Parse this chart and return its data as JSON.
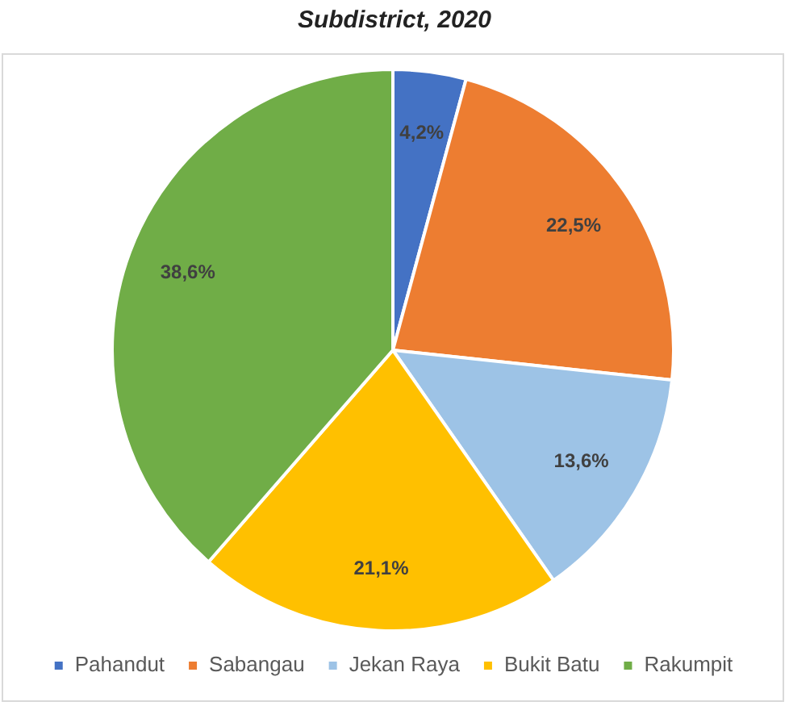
{
  "chart_data": {
    "type": "pie",
    "title": "Subdistrict, 2020",
    "categories": [
      "Pahandut",
      "Sabangau",
      "Jekan Raya",
      "Bukit Batu",
      "Rakumpit"
    ],
    "values": [
      4.2,
      22.5,
      13.6,
      21.1,
      38.6
    ],
    "value_labels": [
      "4,2%",
      "22,5%",
      "13,6%",
      "21,1%",
      "38,6%"
    ],
    "colors": [
      "#4472c4",
      "#ed7d31",
      "#9dc3e6",
      "#ffc000",
      "#70ad47"
    ],
    "legend": "bottom"
  }
}
